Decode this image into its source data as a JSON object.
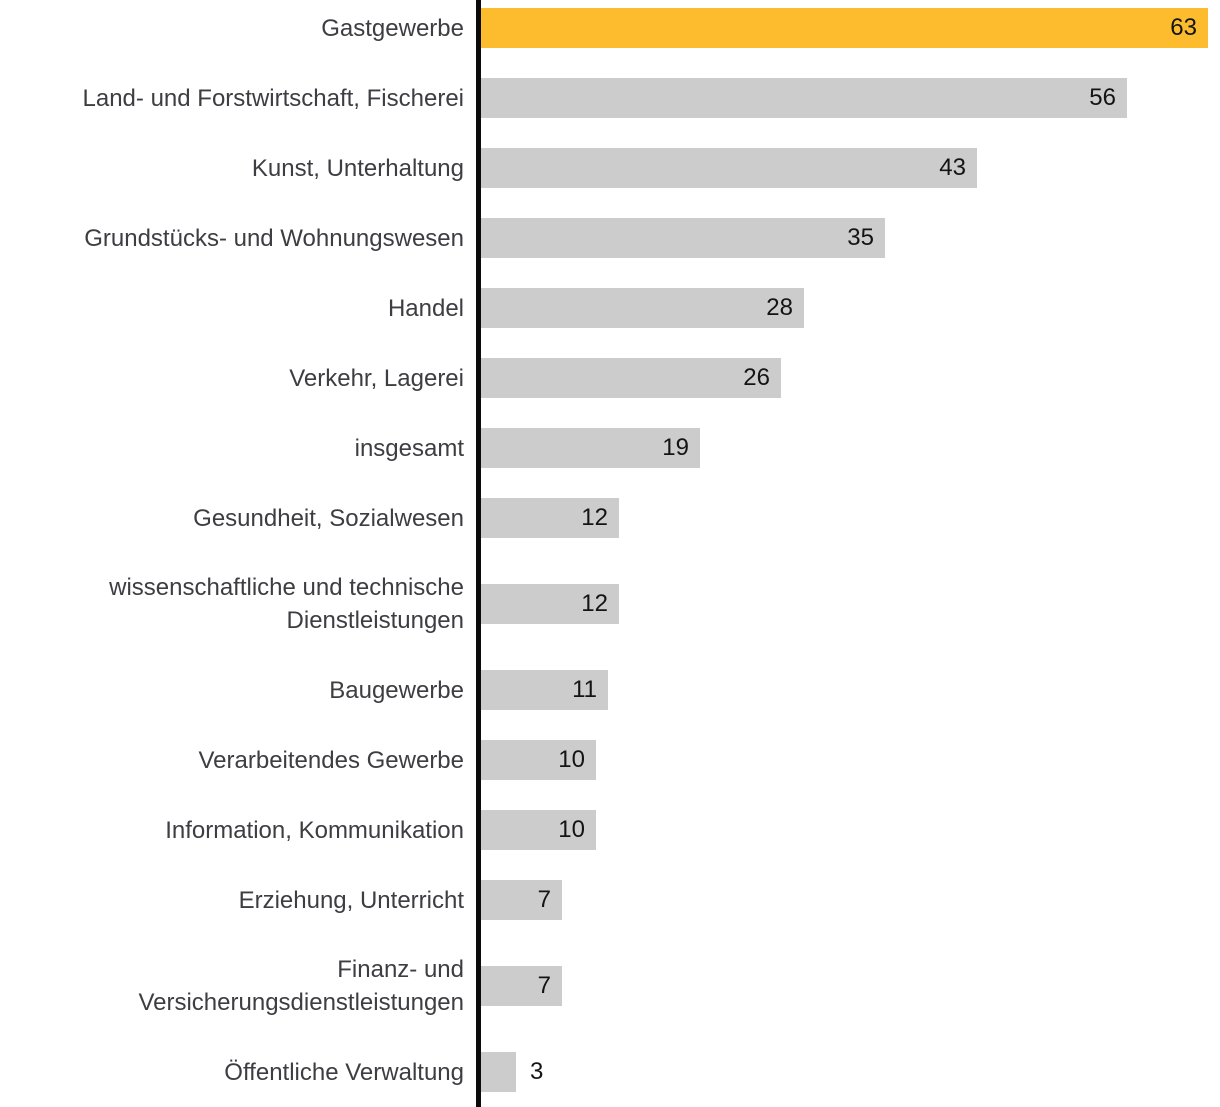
{
  "chart_data": {
    "type": "bar",
    "orientation": "horizontal",
    "title": "",
    "xlabel": "",
    "ylabel": "",
    "legend": false,
    "grid": false,
    "xlim": [
      0,
      64
    ],
    "highlight_index": 0,
    "categories": [
      "Gastgewerbe",
      "Land- und Forstwirtschaft, Fischerei",
      "Kunst, Unterhaltung",
      "Grundstücks- und Wohnungswesen",
      "Handel",
      "Verkehr, Lagerei",
      "insgesamt",
      "Gesundheit, Sozialwesen",
      "wissenschaftliche und technische Dienstleistungen",
      "Baugewerbe",
      "Verarbeitendes Gewerbe",
      "Information, Kommunikation",
      "Erziehung, Unterricht",
      "Finanz- und Versicherungsdienstleistungen",
      "Öffentliche Verwaltung"
    ],
    "label_lines": [
      [
        "Gastgewerbe"
      ],
      [
        "Land- und Forstwirtschaft, Fischerei"
      ],
      [
        "Kunst, Unterhaltung"
      ],
      [
        "Grundstücks- und Wohnungswesen"
      ],
      [
        "Handel"
      ],
      [
        "Verkehr, Lagerei"
      ],
      [
        "insgesamt"
      ],
      [
        "Gesundheit, Sozialwesen"
      ],
      [
        "wissenschaftliche und technische",
        "Dienstleistungen"
      ],
      [
        "Baugewerbe"
      ],
      [
        "Verarbeitendes Gewerbe"
      ],
      [
        "Information, Kommunikation"
      ],
      [
        "Erziehung, Unterricht"
      ],
      [
        "Finanz- und",
        "Versicherungsdienstleistungen"
      ],
      [
        "Öffentliche Verwaltung"
      ]
    ],
    "values": [
      63,
      56,
      43,
      35,
      28,
      26,
      19,
      12,
      12,
      11,
      10,
      10,
      7,
      7,
      3
    ],
    "colors": {
      "highlight_bar": "#FCBC2E",
      "bar": "#CCCCCC",
      "axis": "#0B0B0B",
      "category_label": "#3D3D42",
      "value_label": "#141414"
    }
  }
}
